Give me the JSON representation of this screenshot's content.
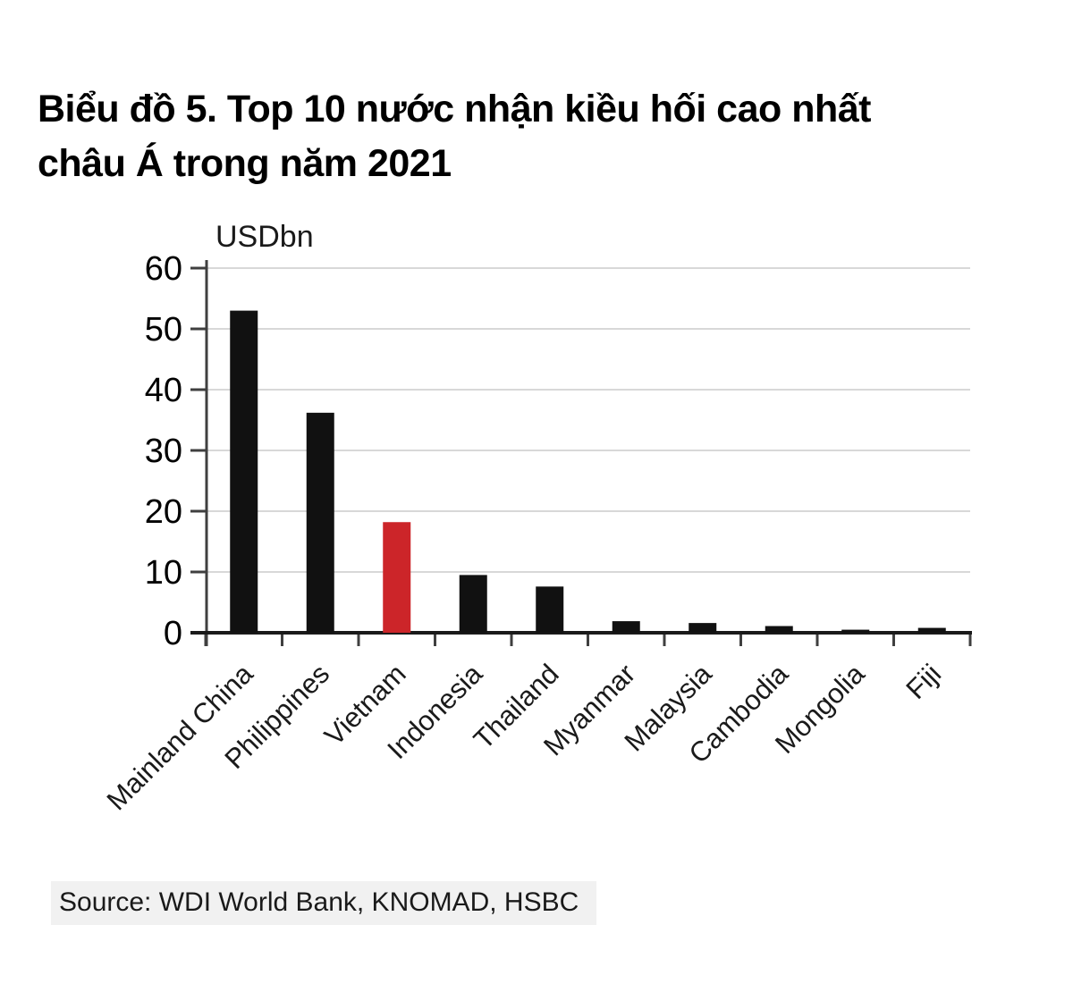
{
  "page": {
    "title_lines": [
      "Biểu đồ 5. Top 10 nước nhận kiều hối cao nhất",
      "châu Á trong năm 2021"
    ],
    "source_note": "Source: WDI World Bank, KNOMAD, HSBC"
  },
  "colors": {
    "bar": "#111111",
    "highlight": "#cc2529",
    "grid": "#d8d8d8",
    "axis": "#3f3f3f",
    "baseline": "#1a1a1a",
    "tick_text": "#000000",
    "unit_text": "#1a1a1a",
    "category_text": "#1a1a1a",
    "source_bg": "#f1f1f1"
  },
  "chart_data": {
    "type": "bar",
    "title": "Biểu đồ 5. Top 10 nước nhận kiều hối cao nhất châu Á trong năm 2021",
    "unit_label": "USDbn",
    "xlabel": "",
    "ylabel": "USDbn",
    "categories": [
      "Mainland China",
      "Philippines",
      "Vietnam",
      "Indonesia",
      "Thailand",
      "Myanmar",
      "Malaysia",
      "Cambodia",
      "Mongolia",
      "Fiji"
    ],
    "values": [
      53,
      36.2,
      18.2,
      9.5,
      7.6,
      1.9,
      1.6,
      1.1,
      0.5,
      0.8
    ],
    "highlight_category": "Vietnam",
    "ylim": [
      0,
      60
    ],
    "yticks": [
      0,
      10,
      20,
      30,
      40,
      50,
      60
    ],
    "grid": "horizontal",
    "legend_position": "none",
    "source": "Source: WDI World Bank, KNOMAD, HSBC"
  }
}
